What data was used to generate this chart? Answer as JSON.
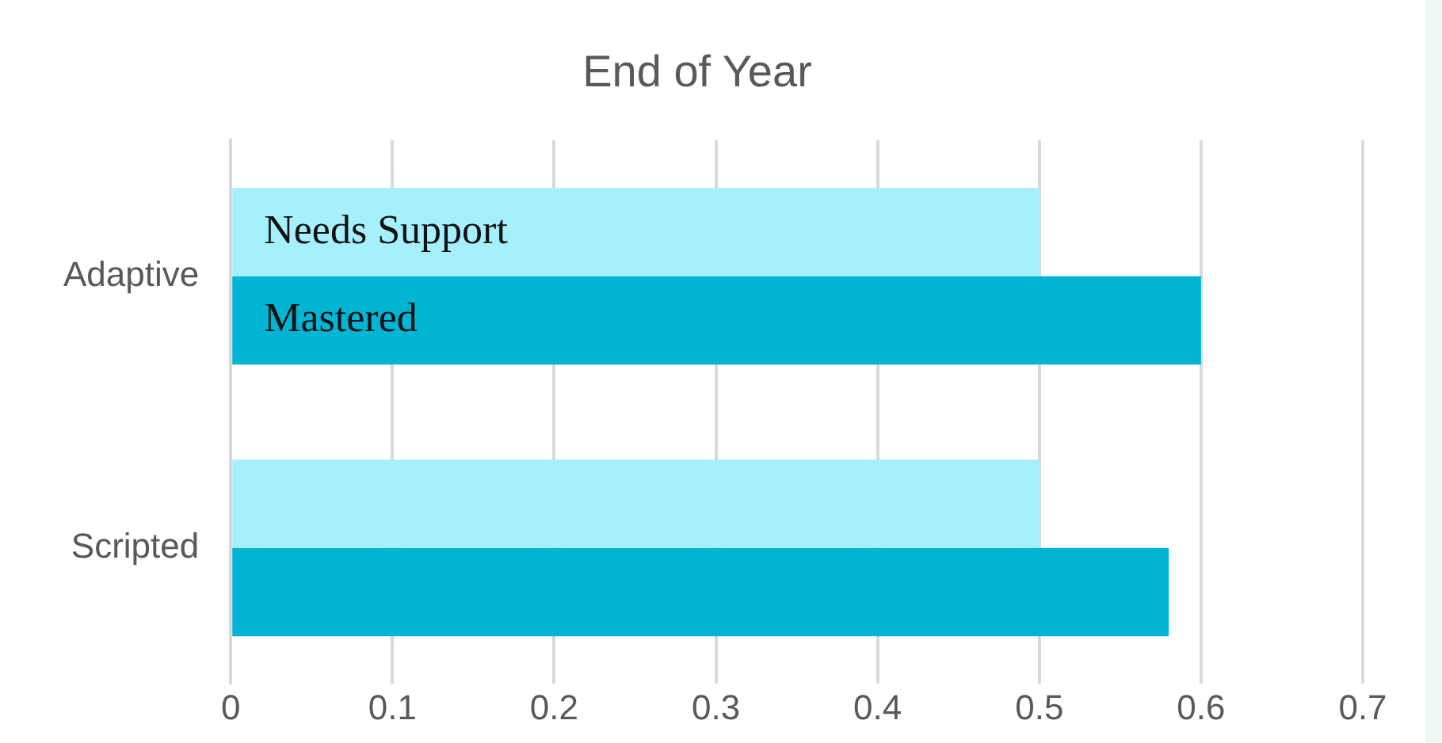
{
  "chart_data": {
    "type": "bar",
    "orientation": "horizontal",
    "title": "End of Year",
    "categories": [
      "Adaptive",
      "Scripted"
    ],
    "series": [
      {
        "name": "Needs Support",
        "color": "#a6f0fd",
        "values": [
          0.5,
          0.5
        ]
      },
      {
        "name": "Mastered",
        "color": "#00b5d4",
        "values": [
          0.6,
          0.58
        ]
      }
    ],
    "xlim": [
      0,
      0.7
    ],
    "xticks": [
      0,
      0.1,
      0.2,
      0.3,
      0.4,
      0.5,
      0.6,
      0.7
    ],
    "grid": "x",
    "legend": false
  }
}
